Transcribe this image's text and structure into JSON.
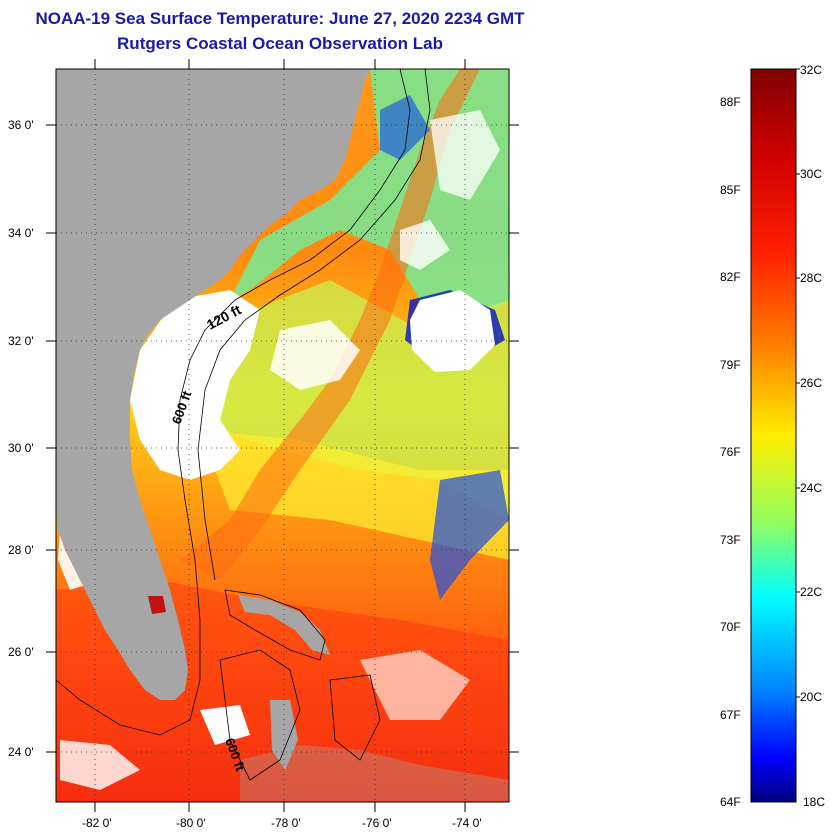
{
  "header": {
    "title": "NOAA-19 Sea Surface Temperature:  June 27, 2020 2234 GMT",
    "subtitle": "Rutgers Coastal Ocean Observation Lab"
  },
  "map": {
    "lat_range": [
      23,
      37
    ],
    "lon_range": [
      -83,
      -73
    ],
    "lat_ticks": [
      "36 0'",
      "34 0'",
      "32 0'",
      "30 0'",
      "28 0'",
      "26 0'",
      "24 0'"
    ],
    "lon_ticks": [
      "-82 0'",
      "-80 0'",
      "-78 0'",
      "-76 0'",
      "-74 0'"
    ],
    "isobath_labels": [
      "120 ft",
      "600 ft",
      "600 ft"
    ],
    "colors": {
      "land": "#a6a6a6",
      "cloud": "#ffffff",
      "contour": "#000000",
      "grid": "#333333"
    }
  },
  "colorbar": {
    "celsius_ticks": [
      "32C",
      "30C",
      "28C",
      "26C",
      "24C",
      "22C",
      "20C",
      "18C"
    ],
    "fahrenheit_ticks": [
      "88F",
      "85F",
      "82F",
      "79F",
      "76F",
      "73F",
      "70F",
      "67F",
      "64F"
    ],
    "range_c": [
      18,
      32
    ],
    "colors": [
      "#00007f",
      "#0000ff",
      "#0080ff",
      "#00ffff",
      "#80ff80",
      "#ffff00",
      "#ff8000",
      "#ff0000",
      "#7f0000"
    ]
  }
}
